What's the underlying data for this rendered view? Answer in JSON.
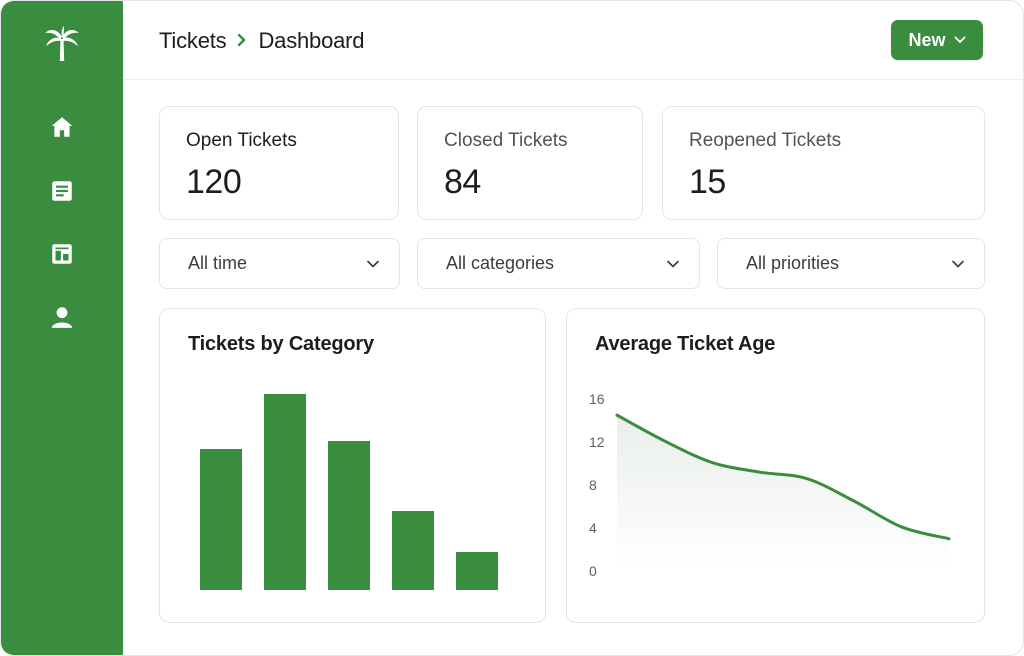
{
  "sidebar": {
    "logo_icon": "palm-tree-icon",
    "items": [
      {
        "icon": "home-icon"
      },
      {
        "icon": "document-icon"
      },
      {
        "icon": "dashboard-icon"
      },
      {
        "icon": "user-icon"
      }
    ]
  },
  "header": {
    "breadcrumb": [
      "Tickets",
      "Dashboard"
    ],
    "separator_icon": "chevron-right-icon",
    "new_button": {
      "label": "New",
      "icon": "chevron-down-icon"
    }
  },
  "stats": [
    {
      "label": "Open Tickets",
      "value": "120"
    },
    {
      "label": "Closed Tickets",
      "value": "84"
    },
    {
      "label": "Reopened Tickets",
      "value": "15"
    }
  ],
  "filters": [
    {
      "value": "All time"
    },
    {
      "value": "All categories"
    },
    {
      "value": "All priorities"
    }
  ],
  "colors": {
    "accent": "#3a8d3e",
    "text": "#1b1f1c"
  },
  "chart_data": [
    {
      "type": "bar",
      "title": "Tickets by Category",
      "categories": [
        "",
        "",
        "",
        "",
        ""
      ],
      "values": [
        141,
        196,
        149,
        79,
        38
      ],
      "ylim": [
        0,
        210
      ],
      "grid": false
    },
    {
      "type": "area",
      "title": "Average Ticket Age",
      "yticks": [
        "0",
        "4",
        "8",
        "12",
        "16"
      ],
      "ylim": [
        0,
        16
      ],
      "x": [
        0,
        1,
        2,
        3,
        4,
        5,
        6,
        7
      ],
      "y": [
        14.5,
        12.1,
        10.1,
        9.2,
        8.6,
        6.5,
        4.1,
        3.0
      ],
      "grid": false
    }
  ]
}
